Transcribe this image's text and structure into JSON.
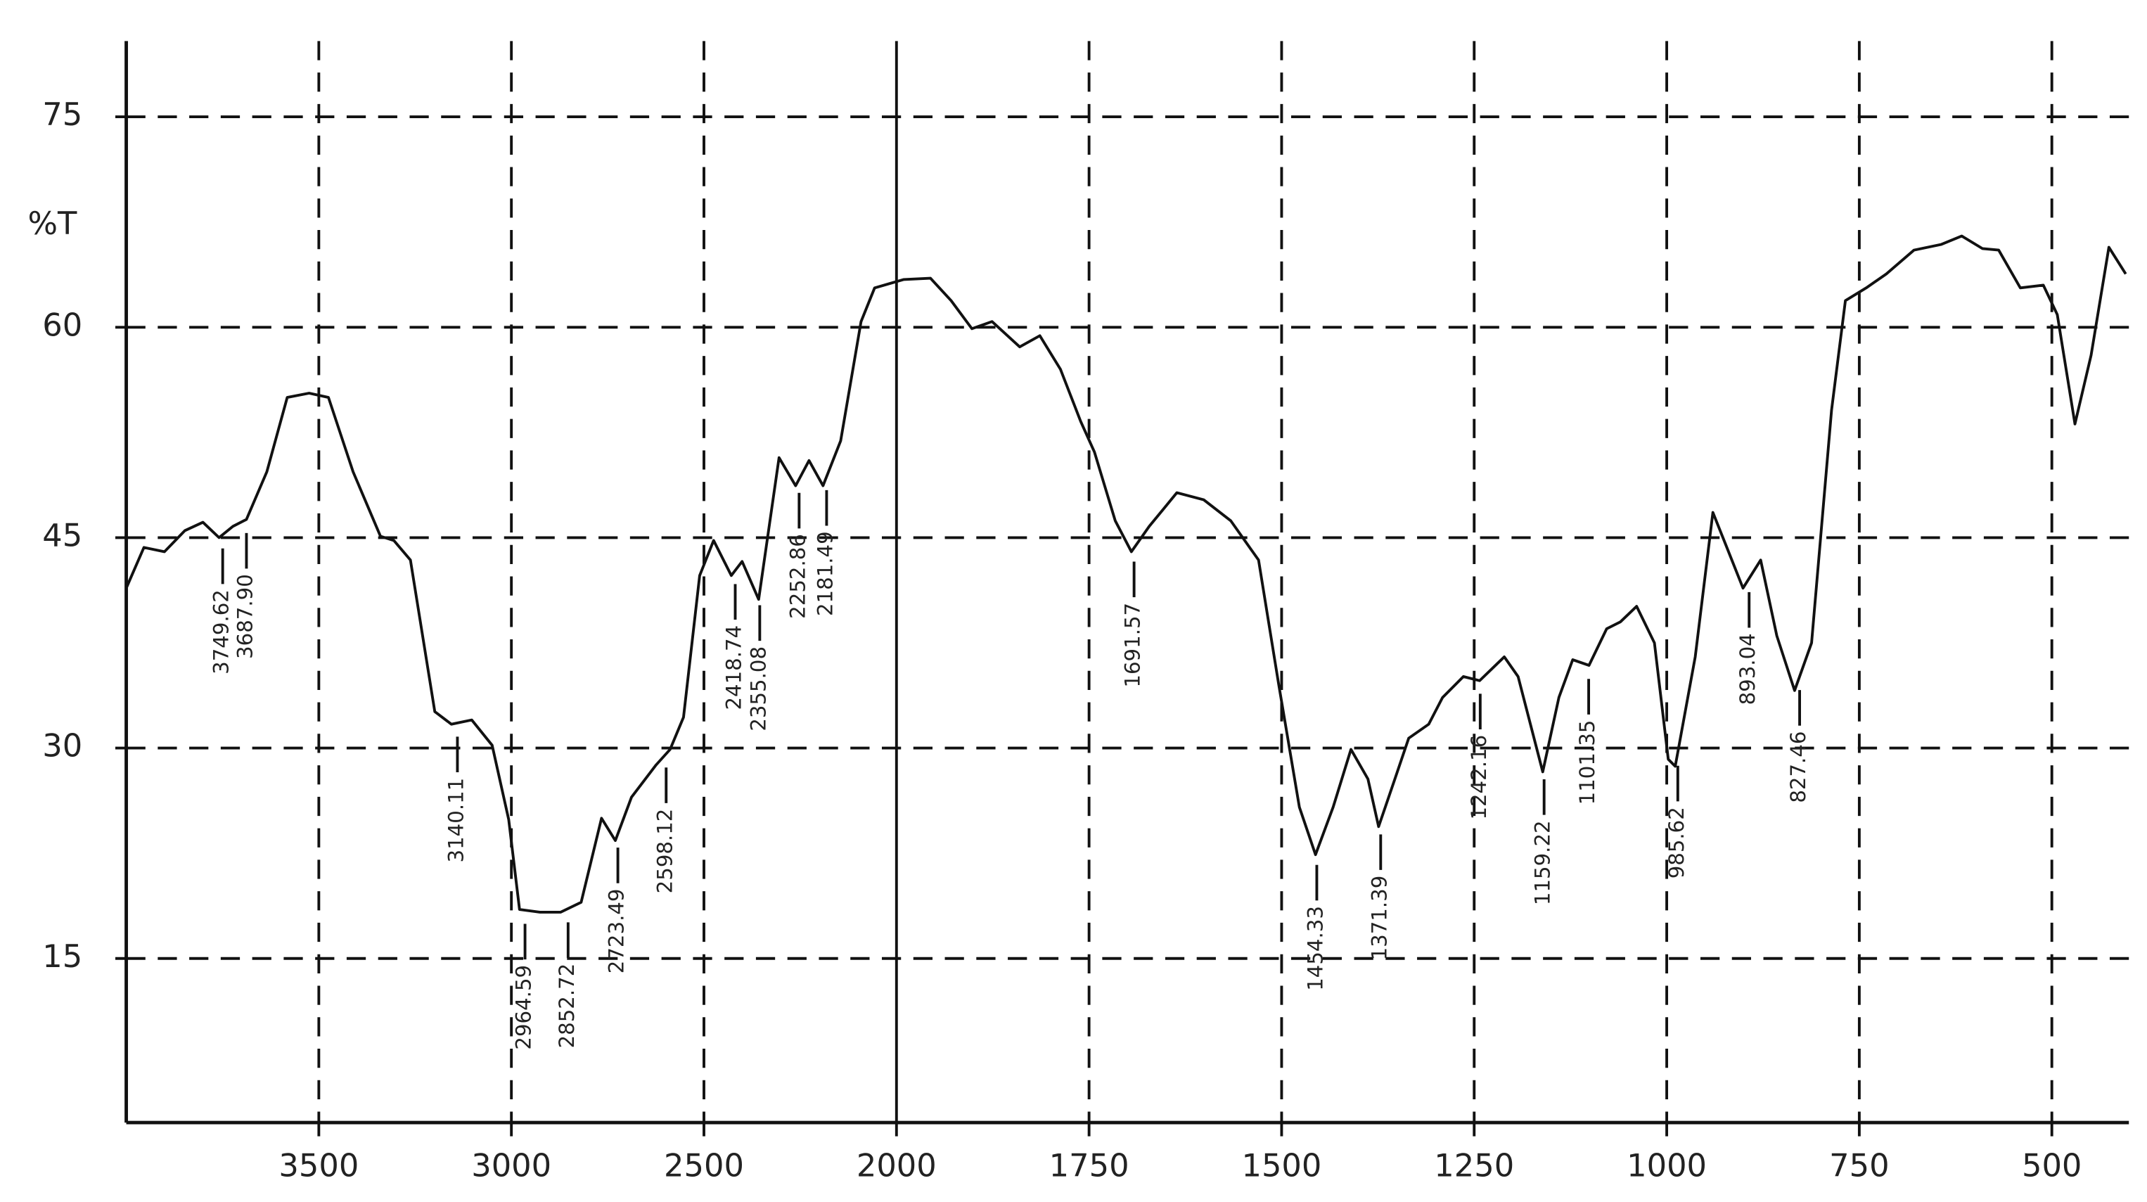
{
  "chart_data": {
    "type": "line",
    "ylabel": "%T",
    "xlim": [
      4000,
      400
    ],
    "x_break": 2000,
    "ylim": [
      3.3,
      80.4
    ],
    "xticks": [
      3500,
      3000,
      2500,
      2000,
      1750,
      1500,
      1250,
      1000,
      750,
      500
    ],
    "yticks": [
      15,
      30,
      45,
      60,
      75
    ],
    "grid": true,
    "color": "#111111",
    "x": [
      4000,
      3954,
      3901,
      3848,
      3801,
      3759,
      3723,
      3688,
      3635,
      3582,
      3525,
      3475,
      3411,
      3340,
      3305,
      3262,
      3199,
      3156,
      3103,
      3050,
      3007,
      2979,
      2926,
      2872,
      2819,
      2766,
      2730,
      2688,
      2624,
      2588,
      2553,
      2511,
      2475,
      2429,
      2401,
      2358,
      2305,
      2262,
      2227,
      2191,
      2145,
      2092,
      2057,
      1991,
      1956,
      1929,
      1902,
      1876,
      1840,
      1814,
      1787,
      1761,
      1743,
      1716,
      1695,
      1672,
      1636,
      1601,
      1566,
      1530,
      1504,
      1477,
      1456,
      1433,
      1410,
      1388,
      1374,
      1353,
      1335,
      1309,
      1291,
      1264,
      1243,
      1211,
      1193,
      1161,
      1140,
      1122,
      1101,
      1078,
      1060,
      1039,
      1016,
      998,
      989,
      963,
      940,
      922,
      901,
      878,
      857,
      834,
      812,
      786,
      768,
      741,
      715,
      679,
      644,
      617,
      590,
      569,
      541,
      511,
      493,
      470,
      449,
      426,
      404
    ],
    "values": [
      41.4,
      44.3,
      44.0,
      45.5,
      46.1,
      45.0,
      45.8,
      46.3,
      49.7,
      55.0,
      55.3,
      55.0,
      49.7,
      45.1,
      44.8,
      43.4,
      32.6,
      31.7,
      32.0,
      30.2,
      24.9,
      18.5,
      18.3,
      18.3,
      19.0,
      25.0,
      23.4,
      26.5,
      28.8,
      29.9,
      32.2,
      42.3,
      44.8,
      42.3,
      43.3,
      40.6,
      50.7,
      48.7,
      50.5,
      48.7,
      51.9,
      60.4,
      62.8,
      63.4,
      63.5,
      61.9,
      59.9,
      60.4,
      58.6,
      59.4,
      57.0,
      53.3,
      51.1,
      46.2,
      44.0,
      45.8,
      48.2,
      47.7,
      46.2,
      43.4,
      34.6,
      25.8,
      22.4,
      25.8,
      29.9,
      27.8,
      24.4,
      27.8,
      30.7,
      31.7,
      33.6,
      35.1,
      34.8,
      36.5,
      35.1,
      28.3,
      33.6,
      36.3,
      35.9,
      38.5,
      39.0,
      40.1,
      37.5,
      29.2,
      28.7,
      36.5,
      46.8,
      44.3,
      41.4,
      43.4,
      38.0,
      34.1,
      37.5,
      54.1,
      61.9,
      62.8,
      63.8,
      65.5,
      65.9,
      66.5,
      65.6,
      65.5,
      62.8,
      63.0,
      60.9,
      53.1,
      58.0,
      65.7,
      63.8
    ],
    "peaks": [
      {
        "value": 3749.62,
        "label": "3749.62"
      },
      {
        "value": 3687.9,
        "label": "3687.90"
      },
      {
        "value": 3140.11,
        "label": "3140.11"
      },
      {
        "value": 2964.59,
        "label": "2964.59"
      },
      {
        "value": 2852.72,
        "label": "2852.72"
      },
      {
        "value": 2723.49,
        "label": "2723.49"
      },
      {
        "value": 2598.12,
        "label": "2598.12"
      },
      {
        "value": 2418.74,
        "label": "2418.74"
      },
      {
        "value": 2355.08,
        "label": "2355.08"
      },
      {
        "value": 2252.86,
        "label": "2252.86"
      },
      {
        "value": 2181.49,
        "label": "2181.49"
      },
      {
        "value": 1691.57,
        "label": "1691.57"
      },
      {
        "value": 1454.33,
        "label": "1454.33"
      },
      {
        "value": 1371.39,
        "label": "1371.39"
      },
      {
        "value": 1242.16,
        "label": "1242.16"
      },
      {
        "value": 1159.22,
        "label": "1159.22"
      },
      {
        "value": 1101.35,
        "label": "1101.35"
      },
      {
        "value": 985.62,
        "label": "985.62"
      },
      {
        "value": 893.04,
        "label": "893.04"
      },
      {
        "value": 827.46,
        "label": "827.46"
      }
    ]
  }
}
